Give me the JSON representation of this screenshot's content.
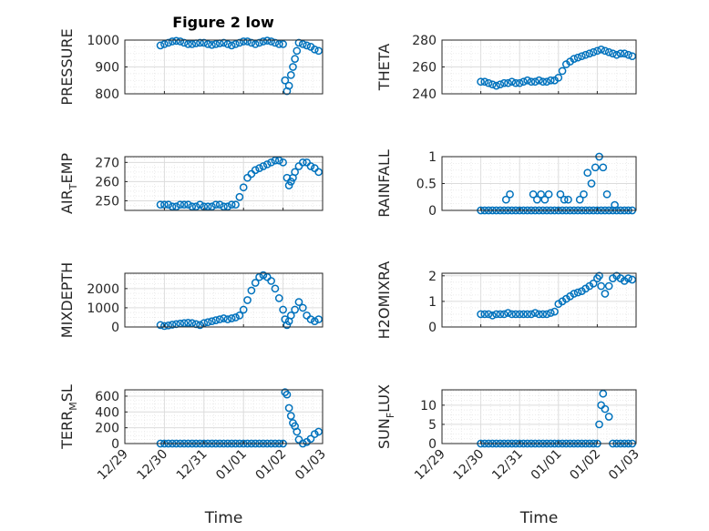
{
  "figure": {
    "title": "Figure 2 low",
    "marker_color": "#0072BD"
  },
  "x_tick_labels": [
    "12/29",
    "12/30",
    "12/31",
    "01/01",
    "01/02",
    "01/03"
  ],
  "x_label": "Time",
  "chart_data": [
    {
      "type": "scatter",
      "ylabel": "PRESSURE",
      "xlim": [
        0,
        5
      ],
      "ylim": [
        800,
        1000
      ],
      "yticks": [
        800,
        900,
        1000
      ],
      "xlabel": "",
      "x": [
        0.9,
        1.0,
        1.1,
        1.2,
        1.3,
        1.4,
        1.5,
        1.6,
        1.7,
        1.8,
        1.9,
        2.0,
        2.1,
        2.2,
        2.3,
        2.4,
        2.5,
        2.6,
        2.7,
        2.8,
        2.9,
        3.0,
        3.1,
        3.2,
        3.3,
        3.4,
        3.5,
        3.6,
        3.7,
        3.8,
        3.9,
        4.0,
        4.05,
        4.1,
        4.15,
        4.2,
        4.25,
        4.3,
        4.35,
        4.4,
        4.5,
        4.6,
        4.7,
        4.8,
        4.9
      ],
      "y": [
        980,
        985,
        990,
        995,
        997,
        995,
        990,
        985,
        985,
        988,
        990,
        990,
        985,
        982,
        985,
        988,
        990,
        985,
        980,
        985,
        990,
        995,
        995,
        990,
        985,
        990,
        995,
        998,
        995,
        990,
        985,
        985,
        850,
        810,
        830,
        870,
        900,
        930,
        960,
        990,
        985,
        980,
        975,
        965,
        960
      ]
    },
    {
      "type": "scatter",
      "ylabel": "THETA",
      "xlim": [
        0,
        5
      ],
      "ylim": [
        240,
        280
      ],
      "yticks": [
        240,
        260,
        280
      ],
      "xlabel": "",
      "x": [
        1.0,
        1.1,
        1.2,
        1.3,
        1.4,
        1.5,
        1.6,
        1.7,
        1.8,
        1.9,
        2.0,
        2.1,
        2.2,
        2.3,
        2.4,
        2.5,
        2.6,
        2.7,
        2.8,
        2.9,
        3.0,
        3.1,
        3.2,
        3.3,
        3.4,
        3.5,
        3.6,
        3.7,
        3.8,
        3.9,
        4.0,
        4.1,
        4.2,
        4.3,
        4.4,
        4.5,
        4.6,
        4.7,
        4.8,
        4.9
      ],
      "y": [
        249,
        249,
        248,
        247,
        246,
        247,
        248,
        248,
        249,
        248,
        248,
        249,
        250,
        249,
        249,
        250,
        249,
        249,
        250,
        250,
        252,
        257,
        262,
        264,
        266,
        267,
        268,
        269,
        270,
        271,
        272,
        273,
        272,
        271,
        270,
        269,
        270,
        270,
        269,
        268
      ]
    },
    {
      "type": "scatter",
      "ylabel": "AIR_TEMP",
      "xlim": [
        0,
        5
      ],
      "ylim": [
        245,
        273
      ],
      "yticks": [
        250,
        260,
        270
      ],
      "xlabel": "",
      "x": [
        0.9,
        1.0,
        1.1,
        1.2,
        1.3,
        1.4,
        1.5,
        1.6,
        1.7,
        1.8,
        1.9,
        2.0,
        2.1,
        2.2,
        2.3,
        2.4,
        2.5,
        2.6,
        2.7,
        2.8,
        2.9,
        3.0,
        3.1,
        3.2,
        3.3,
        3.4,
        3.5,
        3.6,
        3.7,
        3.8,
        3.9,
        4.0,
        4.1,
        4.15,
        4.2,
        4.25,
        4.3,
        4.4,
        4.5,
        4.6,
        4.7,
        4.8,
        4.9
      ],
      "y": [
        248,
        248,
        248,
        247,
        247,
        248,
        248,
        248,
        247,
        247,
        248,
        247,
        247,
        247,
        248,
        248,
        247,
        247,
        248,
        248,
        252,
        257,
        262,
        264,
        266,
        267,
        268,
        269,
        270,
        271,
        271,
        270,
        262,
        258,
        260,
        262,
        265,
        268,
        270,
        270,
        268,
        267,
        265
      ]
    },
    {
      "type": "scatter",
      "ylabel": "RAINFALL",
      "xlim": [
        0,
        5
      ],
      "ylim": [
        0,
        1
      ],
      "yticks": [
        0,
        0.5,
        1
      ],
      "xlabel": "",
      "x": [
        1.0,
        1.1,
        1.2,
        1.3,
        1.4,
        1.5,
        1.6,
        1.7,
        1.8,
        1.9,
        2.0,
        2.1,
        2.2,
        2.3,
        2.4,
        2.5,
        2.6,
        2.7,
        2.8,
        2.9,
        3.0,
        3.1,
        3.2,
        3.3,
        3.4,
        3.5,
        3.6,
        3.7,
        3.8,
        3.9,
        4.0,
        4.1,
        4.2,
        4.3,
        4.4,
        4.5,
        4.6,
        4.7,
        4.8,
        4.9,
        1.65,
        1.75,
        2.35,
        2.45,
        2.55,
        2.65,
        2.75,
        3.05,
        3.15,
        3.25,
        3.55,
        3.65,
        3.75,
        3.85,
        3.95,
        4.05,
        4.15,
        4.25,
        4.45
      ],
      "y": [
        0,
        0,
        0,
        0,
        0,
        0,
        0,
        0,
        0,
        0,
        0,
        0,
        0,
        0,
        0,
        0,
        0,
        0,
        0,
        0,
        0,
        0,
        0,
        0,
        0,
        0,
        0,
        0,
        0,
        0,
        0,
        0,
        0,
        0,
        0,
        0,
        0,
        0,
        0,
        0,
        0.2,
        0.3,
        0.3,
        0.2,
        0.3,
        0.2,
        0.3,
        0.3,
        0.2,
        0.2,
        0.2,
        0.3,
        0.7,
        0.5,
        0.8,
        1.0,
        0.8,
        0.3,
        0.1
      ]
    },
    {
      "type": "scatter",
      "ylabel": "MIXDEPTH",
      "xlim": [
        0,
        5
      ],
      "ylim": [
        0,
        2800
      ],
      "yticks": [
        0,
        1000,
        2000
      ],
      "xlabel": "",
      "x": [
        0.9,
        1.0,
        1.1,
        1.2,
        1.3,
        1.4,
        1.5,
        1.6,
        1.7,
        1.8,
        1.9,
        2.0,
        2.1,
        2.2,
        2.3,
        2.4,
        2.5,
        2.6,
        2.7,
        2.8,
        2.9,
        3.0,
        3.1,
        3.2,
        3.3,
        3.4,
        3.5,
        3.6,
        3.7,
        3.8,
        3.9,
        4.0,
        4.05,
        4.1,
        4.15,
        4.2,
        4.3,
        4.4,
        4.5,
        4.6,
        4.7,
        4.8,
        4.9
      ],
      "y": [
        100,
        50,
        80,
        120,
        150,
        180,
        200,
        220,
        200,
        150,
        100,
        200,
        250,
        300,
        350,
        400,
        450,
        400,
        450,
        500,
        600,
        900,
        1400,
        1900,
        2300,
        2600,
        2700,
        2600,
        2400,
        2000,
        1500,
        900,
        400,
        100,
        300,
        600,
        900,
        1300,
        1000,
        600,
        400,
        300,
        400
      ]
    },
    {
      "type": "scatter",
      "ylabel": "H2OMIXRA",
      "xlim": [
        0,
        5
      ],
      "ylim": [
        0,
        2.1
      ],
      "yticks": [
        0,
        1,
        2
      ],
      "xlabel": "",
      "x": [
        1.0,
        1.1,
        1.2,
        1.3,
        1.4,
        1.5,
        1.6,
        1.7,
        1.8,
        1.9,
        2.0,
        2.1,
        2.2,
        2.3,
        2.4,
        2.5,
        2.6,
        2.7,
        2.8,
        2.9,
        3.0,
        3.1,
        3.2,
        3.3,
        3.4,
        3.5,
        3.6,
        3.7,
        3.8,
        3.9,
        4.0,
        4.05,
        4.1,
        4.2,
        4.3,
        4.4,
        4.5,
        4.6,
        4.7,
        4.8,
        4.9
      ],
      "y": [
        0.5,
        0.5,
        0.5,
        0.45,
        0.5,
        0.5,
        0.5,
        0.55,
        0.5,
        0.5,
        0.5,
        0.5,
        0.5,
        0.5,
        0.55,
        0.5,
        0.5,
        0.5,
        0.55,
        0.6,
        0.9,
        1.0,
        1.1,
        1.2,
        1.3,
        1.35,
        1.4,
        1.5,
        1.6,
        1.7,
        1.9,
        2.0,
        1.6,
        1.3,
        1.6,
        1.9,
        2.0,
        1.9,
        1.8,
        1.9,
        1.85
      ]
    },
    {
      "type": "scatter",
      "ylabel": "TERR_MSL",
      "xlim": [
        0,
        5
      ],
      "ylim": [
        0,
        680
      ],
      "yticks": [
        0,
        200,
        400,
        600
      ],
      "xlabel": "Time",
      "x": [
        0.9,
        1.0,
        1.1,
        1.2,
        1.3,
        1.4,
        1.5,
        1.6,
        1.7,
        1.8,
        1.9,
        2.0,
        2.1,
        2.2,
        2.3,
        2.4,
        2.5,
        2.6,
        2.7,
        2.8,
        2.9,
        3.0,
        3.1,
        3.2,
        3.3,
        3.4,
        3.5,
        3.6,
        3.7,
        3.8,
        3.9,
        4.0,
        4.05,
        4.1,
        4.15,
        4.2,
        4.25,
        4.3,
        4.35,
        4.4,
        4.5,
        4.6,
        4.7,
        4.8,
        4.9
      ],
      "y": [
        0,
        0,
        0,
        0,
        0,
        0,
        0,
        0,
        0,
        0,
        0,
        0,
        0,
        0,
        0,
        0,
        0,
        0,
        0,
        0,
        0,
        0,
        0,
        0,
        0,
        0,
        0,
        0,
        0,
        0,
        0,
        0,
        650,
        620,
        450,
        350,
        260,
        220,
        150,
        50,
        0,
        20,
        60,
        120,
        150
      ]
    },
    {
      "type": "scatter",
      "ylabel": "SUN_FLUX",
      "xlim": [
        0,
        5
      ],
      "ylim": [
        0,
        14
      ],
      "yticks": [
        0,
        5,
        10
      ],
      "xlabel": "Time",
      "x": [
        1.0,
        1.1,
        1.2,
        1.3,
        1.4,
        1.5,
        1.6,
        1.7,
        1.8,
        1.9,
        2.0,
        2.1,
        2.2,
        2.3,
        2.4,
        2.5,
        2.6,
        2.7,
        2.8,
        2.9,
        3.0,
        3.1,
        3.2,
        3.3,
        3.4,
        3.5,
        3.6,
        3.7,
        3.8,
        3.9,
        4.0,
        4.05,
        4.1,
        4.15,
        4.2,
        4.3,
        4.4,
        4.5,
        4.6,
        4.7,
        4.8,
        4.9
      ],
      "y": [
        0,
        0,
        0,
        0,
        0,
        0,
        0,
        0,
        0,
        0,
        0,
        0,
        0,
        0,
        0,
        0,
        0,
        0,
        0,
        0,
        0,
        0,
        0,
        0,
        0,
        0,
        0,
        0,
        0,
        0,
        0,
        5,
        10,
        13,
        9,
        7,
        0,
        0,
        0,
        0,
        0,
        0
      ]
    }
  ]
}
